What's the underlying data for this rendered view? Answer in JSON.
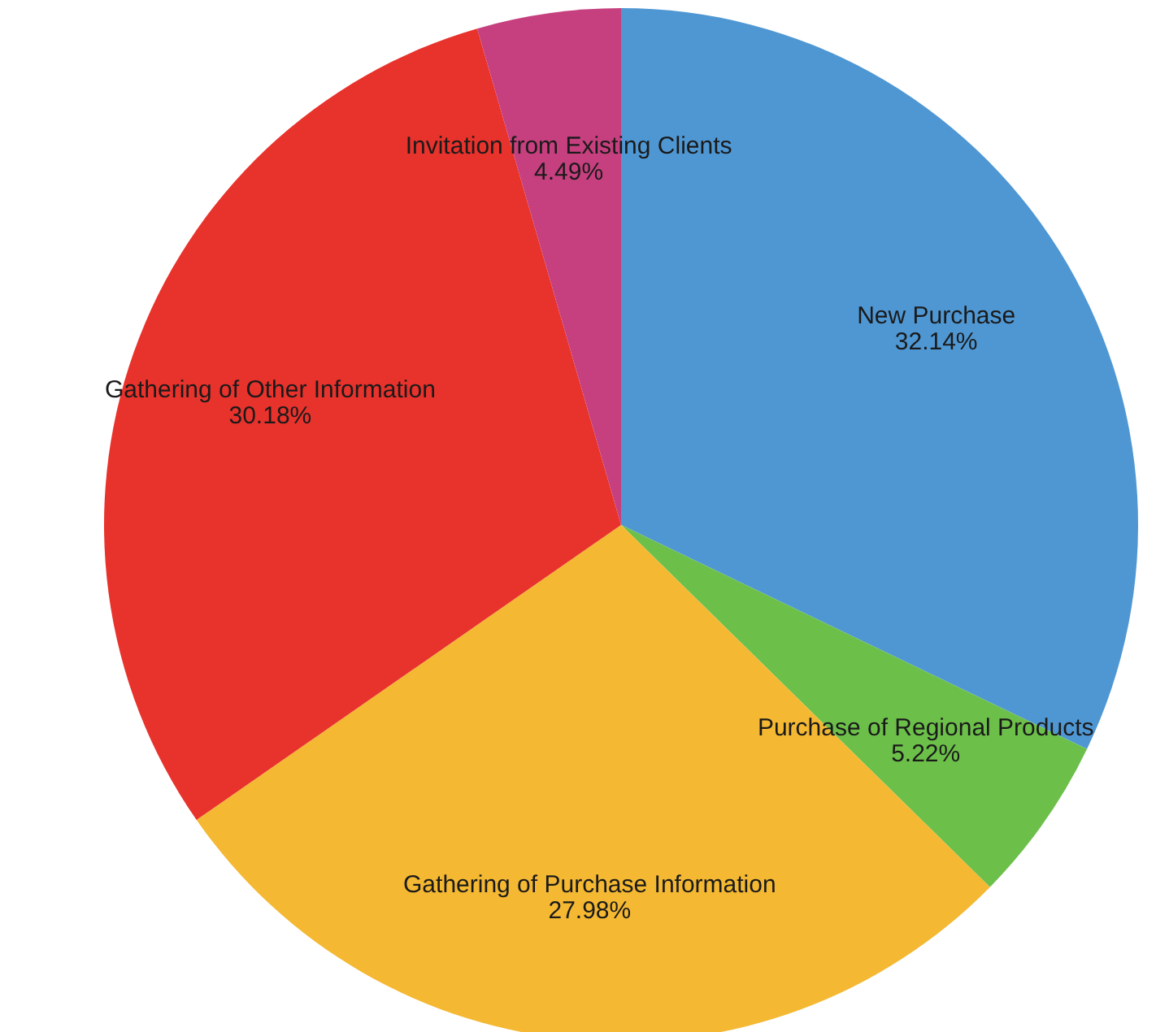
{
  "chart_data": {
    "type": "pie",
    "categories": [
      "New Purchase",
      "Purchase of Regional Products",
      "Gathering of Purchase Information",
      "Gathering of Other Information",
      "Invitation from Existing Clients"
    ],
    "values": [
      32.14,
      5.22,
      27.98,
      30.18,
      4.49
    ],
    "value_labels": [
      "32.14%",
      "5.22%",
      "27.98%",
      "30.18%",
      "4.49%"
    ],
    "colors": [
      "#4f97d3",
      "#6cc04a",
      "#f4b833",
      "#e8322c",
      "#c6407f"
    ]
  }
}
